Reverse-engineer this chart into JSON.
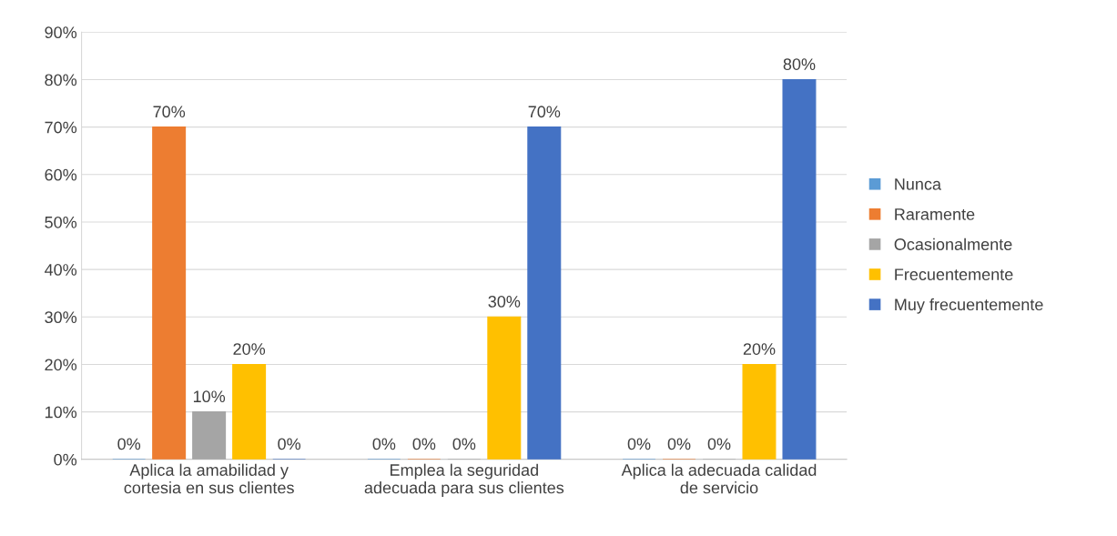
{
  "chart_data": {
    "type": "bar",
    "categories": [
      "Aplica la amabilidad y\ncortesia en sus clientes",
      "Emplea la seguridad\nadecuada para sus clientes",
      "Aplica la adecuada calidad\nde servicio"
    ],
    "series": [
      {
        "name": "Nunca",
        "color": "#5b9bd5",
        "values": [
          0,
          0,
          0
        ],
        "value_labels": [
          "0%",
          "0%",
          "0%"
        ]
      },
      {
        "name": "Raramente",
        "color": "#ed7d31",
        "values": [
          70,
          0,
          0
        ],
        "value_labels": [
          "70%",
          "0%",
          "0%"
        ]
      },
      {
        "name": "Ocasionalmente",
        "color": "#a5a5a5",
        "values": [
          10,
          0,
          0
        ],
        "value_labels": [
          "10%",
          "0%",
          "0%"
        ]
      },
      {
        "name": "Frecuentemente",
        "color": "#ffc000",
        "values": [
          20,
          30,
          20
        ],
        "value_labels": [
          "20%",
          "30%",
          "20%"
        ]
      },
      {
        "name": "Muy frecuentemente",
        "color": "#4472c4",
        "values": [
          0,
          70,
          80
        ],
        "value_labels": [
          "0%",
          "70%",
          "80%"
        ]
      }
    ],
    "ylim": [
      0,
      90
    ],
    "yticks": [
      {
        "value": 0,
        "label": "0%"
      },
      {
        "value": 10,
        "label": "10%"
      },
      {
        "value": 20,
        "label": "20%"
      },
      {
        "value": 30,
        "label": "30%"
      },
      {
        "value": 40,
        "label": "40%"
      },
      {
        "value": 50,
        "label": "50%"
      },
      {
        "value": 60,
        "label": "60%"
      },
      {
        "value": 70,
        "label": "70%"
      },
      {
        "value": 80,
        "label": "80%"
      },
      {
        "value": 90,
        "label": "90%"
      }
    ],
    "grid": "y",
    "legend": "right"
  }
}
